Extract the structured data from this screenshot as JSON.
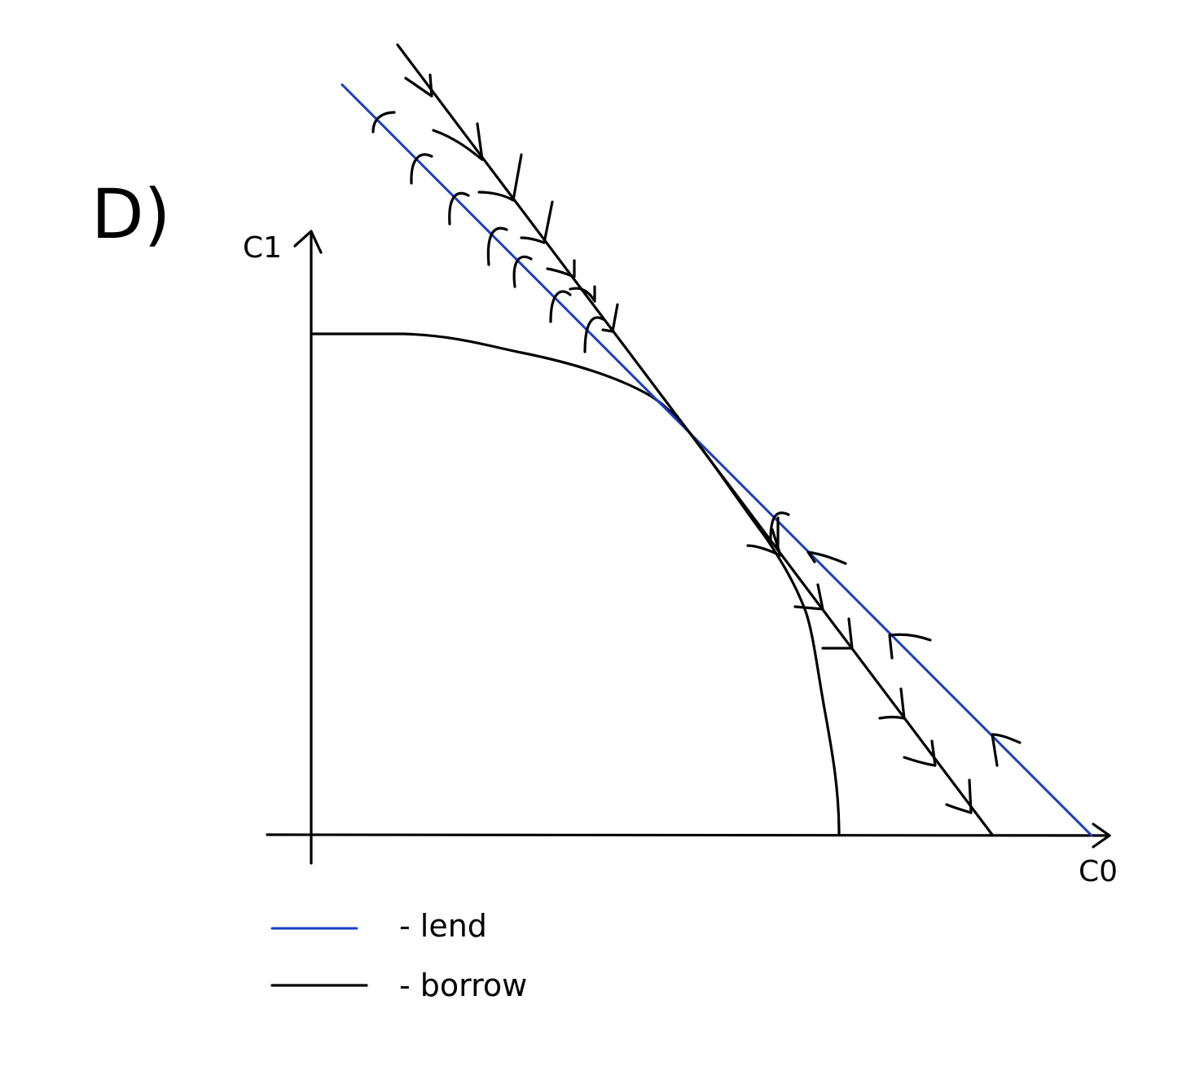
{
  "panel_label": "D)",
  "axes": {
    "y_label": "C1",
    "x_label": "C0"
  },
  "legend": {
    "items": [
      {
        "label": "- lend",
        "color": "#1a3fc4"
      },
      {
        "label": "- borrow",
        "color": "#000000"
      }
    ]
  },
  "colors": {
    "ink": "#000000",
    "lend_line": "#1a3fc4"
  }
}
